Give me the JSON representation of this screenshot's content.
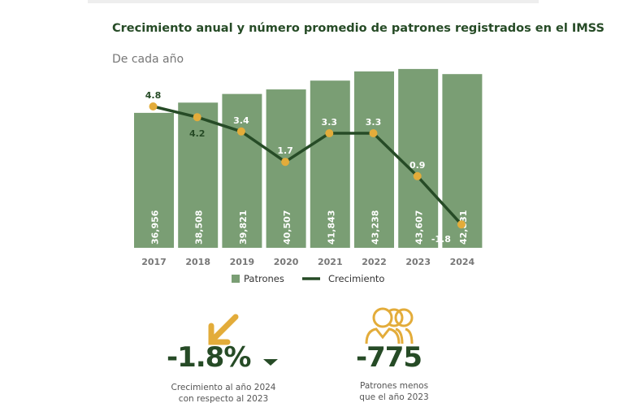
{
  "chart_data": {
    "type": "bar+line",
    "title": "Crecimiento anual y número promedio de patrones registrados en el IMSS",
    "subtitle": "De cada año",
    "categories": [
      "2017",
      "2018",
      "2019",
      "2020",
      "2021",
      "2022",
      "2023",
      "2024"
    ],
    "series": [
      {
        "name": "Patrones",
        "type": "bar",
        "values": [
          36956,
          38508,
          39821,
          40507,
          41843,
          43238,
          43607,
          42831
        ],
        "labels": [
          "36,956",
          "38,508",
          "39,821",
          "40,507",
          "41,843",
          "43,238",
          "43,607",
          "42,831"
        ]
      },
      {
        "name": "Crecimiento",
        "type": "line",
        "values": [
          4.8,
          4.2,
          3.4,
          1.7,
          3.3,
          3.3,
          0.9,
          -1.8
        ],
        "labels": [
          "4.8",
          "4.2",
          "3.4",
          "1.7",
          "3.3",
          "3.3",
          "0.9",
          "-1.8"
        ]
      }
    ],
    "legend": [
      "Patrones",
      "Crecimiento"
    ],
    "legend_position": "bottom",
    "colors": {
      "bar": "#7a9e74",
      "line": "#264b26",
      "dot": "#e3ac3a"
    }
  },
  "kpis": [
    {
      "value": "-1.8%",
      "caption1": "Crecimiento al año 2024",
      "caption2": "con respecto al 2023",
      "icon": "arrow-down-left-icon"
    },
    {
      "value": "-775",
      "caption1": "Patrones menos",
      "caption2": "que el año 2023",
      "icon": "people-icon"
    }
  ]
}
